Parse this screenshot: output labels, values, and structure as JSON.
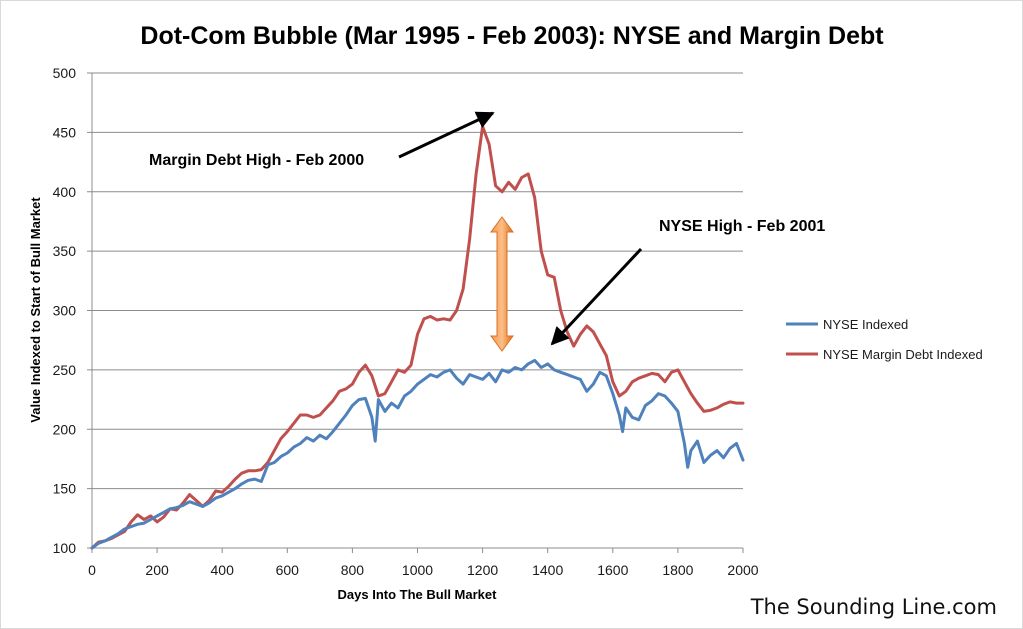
{
  "chart_data": {
    "type": "line",
    "title": "Dot-Com Bubble (Mar 1995 - Feb 2003): NYSE and Margin Debt",
    "xlabel": "Days Into The Bull Market",
    "ylabel": "Value Indexed to Start of Bull Market",
    "xlim": [
      0,
      2000
    ],
    "ylim": [
      100,
      500
    ],
    "xticks": [
      0,
      200,
      400,
      600,
      800,
      1000,
      1200,
      1400,
      1600,
      1800,
      2000
    ],
    "yticks": [
      100,
      150,
      200,
      250,
      300,
      350,
      400,
      450,
      500
    ],
    "grid": "horizontal",
    "legend_position": "right",
    "series": [
      {
        "name": "NYSE Indexed",
        "color": "#4f81bd",
        "x": [
          0,
          20,
          40,
          60,
          80,
          100,
          120,
          140,
          160,
          180,
          200,
          220,
          240,
          260,
          280,
          300,
          320,
          340,
          360,
          380,
          400,
          420,
          440,
          460,
          480,
          500,
          520,
          540,
          560,
          580,
          600,
          620,
          640,
          660,
          680,
          700,
          720,
          740,
          760,
          780,
          800,
          820,
          840,
          860,
          870,
          880,
          900,
          920,
          940,
          960,
          980,
          1000,
          1020,
          1040,
          1060,
          1080,
          1100,
          1120,
          1140,
          1160,
          1180,
          1200,
          1220,
          1240,
          1260,
          1280,
          1300,
          1320,
          1340,
          1360,
          1380,
          1400,
          1420,
          1440,
          1460,
          1480,
          1500,
          1520,
          1540,
          1560,
          1580,
          1600,
          1620,
          1630,
          1640,
          1660,
          1680,
          1700,
          1720,
          1740,
          1760,
          1780,
          1800,
          1820,
          1830,
          1840,
          1860,
          1880,
          1900,
          1920,
          1940,
          1960,
          1980,
          2000
        ],
        "y": [
          100,
          104,
          106,
          109,
          112,
          116,
          118,
          120,
          121,
          124,
          127,
          130,
          133,
          134,
          136,
          139,
          137,
          135,
          138,
          142,
          144,
          147,
          150,
          154,
          157,
          158,
          156,
          170,
          172,
          177,
          180,
          185,
          188,
          193,
          190,
          195,
          192,
          198,
          205,
          212,
          220,
          225,
          226,
          210,
          190,
          225,
          215,
          222,
          218,
          228,
          232,
          238,
          242,
          246,
          244,
          248,
          250,
          243,
          238,
          246,
          244,
          242,
          247,
          240,
          250,
          248,
          252,
          250,
          255,
          258,
          252,
          255,
          250,
          248,
          246,
          244,
          242,
          232,
          238,
          248,
          245,
          230,
          212,
          198,
          218,
          210,
          208,
          220,
          224,
          230,
          228,
          222,
          215,
          188,
          168,
          182,
          190,
          172,
          178,
          182,
          176,
          184,
          188,
          174
        ]
      },
      {
        "name": "NYSE Margin Debt Indexed",
        "color": "#c0504d",
        "x": [
          0,
          20,
          40,
          60,
          80,
          100,
          120,
          140,
          160,
          180,
          200,
          220,
          240,
          260,
          280,
          300,
          320,
          340,
          360,
          380,
          400,
          420,
          440,
          460,
          480,
          500,
          520,
          540,
          560,
          580,
          600,
          620,
          640,
          660,
          680,
          700,
          720,
          740,
          760,
          780,
          800,
          820,
          840,
          860,
          880,
          900,
          920,
          940,
          960,
          980,
          1000,
          1020,
          1040,
          1060,
          1080,
          1100,
          1120,
          1140,
          1160,
          1180,
          1200,
          1220,
          1240,
          1260,
          1280,
          1300,
          1320,
          1340,
          1360,
          1380,
          1400,
          1420,
          1440,
          1460,
          1480,
          1500,
          1520,
          1540,
          1560,
          1580,
          1600,
          1620,
          1640,
          1660,
          1680,
          1700,
          1720,
          1740,
          1760,
          1780,
          1800,
          1820,
          1840,
          1860,
          1880,
          1900,
          1920,
          1940,
          1960,
          1980,
          2000
        ],
        "y": [
          100,
          105,
          106,
          108,
          111,
          114,
          122,
          128,
          124,
          127,
          122,
          126,
          133,
          132,
          138,
          145,
          140,
          135,
          140,
          148,
          147,
          152,
          158,
          163,
          165,
          165,
          166,
          172,
          182,
          192,
          198,
          205,
          212,
          212,
          210,
          212,
          218,
          224,
          232,
          234,
          238,
          248,
          254,
          245,
          228,
          230,
          240,
          250,
          248,
          254,
          280,
          293,
          295,
          292,
          293,
          292,
          300,
          318,
          360,
          415,
          455,
          440,
          405,
          400,
          408,
          402,
          412,
          415,
          395,
          350,
          330,
          328,
          300,
          282,
          270,
          280,
          287,
          282,
          272,
          262,
          240,
          228,
          232,
          240,
          243,
          245,
          247,
          246,
          240,
          248,
          250,
          240,
          230,
          222,
          215,
          216,
          218,
          221,
          223,
          222,
          222
        ]
      }
    ],
    "annotations": [
      {
        "text": "Margin Debt High - Feb 2000"
      },
      {
        "text": "NYSE High - Feb 2001"
      }
    ],
    "watermark": "The Sounding Line.com"
  }
}
